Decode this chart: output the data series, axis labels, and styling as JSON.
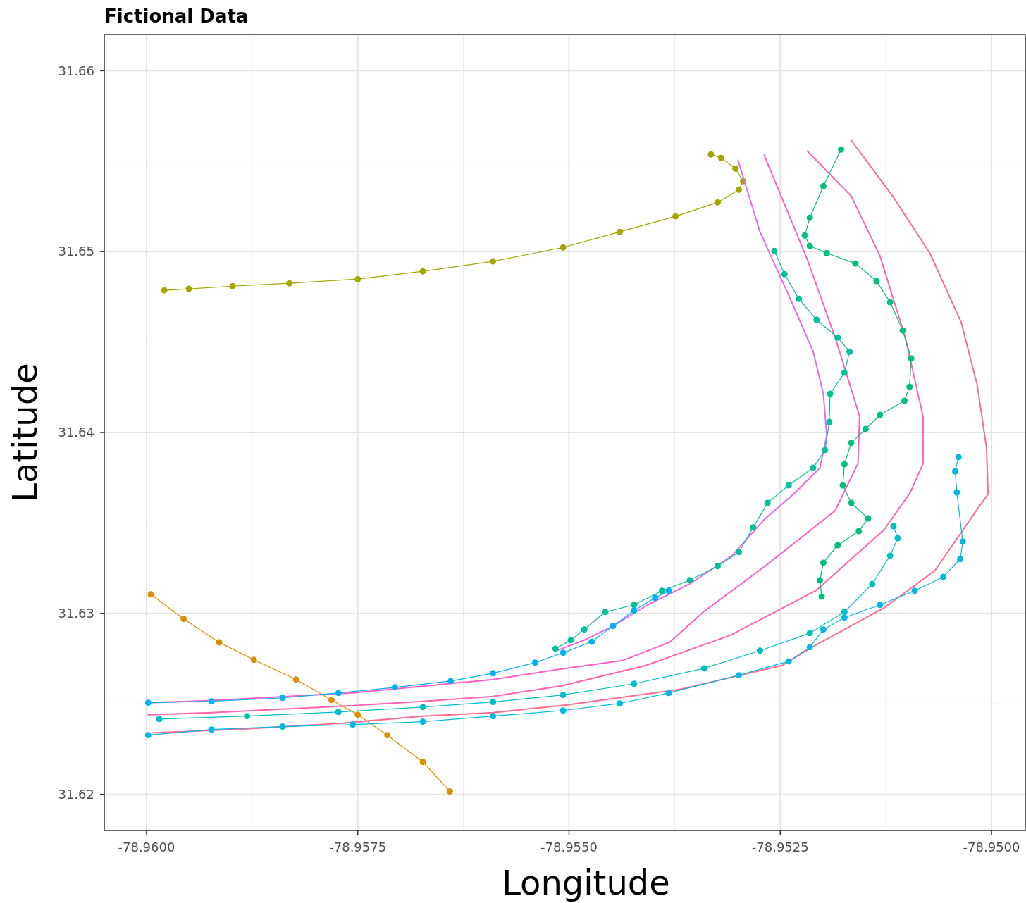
{
  "chart_data": {
    "type": "line",
    "title": "Fictional Data",
    "xlabel": "Longitude",
    "ylabel": "Latitude",
    "xlim": [
      -78.9605,
      -78.9496
    ],
    "ylim": [
      31.618,
      31.662
    ],
    "xticks": [
      {
        "value": -78.96,
        "label": "-78.9600"
      },
      {
        "value": -78.9575,
        "label": "-78.9575"
      },
      {
        "value": -78.955,
        "label": "-78.9550"
      },
      {
        "value": -78.9525,
        "label": "-78.9525"
      },
      {
        "value": -78.95,
        "label": "-78.9500"
      }
    ],
    "yticks": [
      31.62,
      31.63,
      31.64,
      31.65,
      31.66
    ],
    "grid": true,
    "series": [
      {
        "color": "#a3a500",
        "marker": "circle",
        "x": [
          -78.95979,
          -78.9595,
          -78.95898,
          -78.95831,
          -78.9575,
          -78.95673,
          -78.9559,
          -78.95507,
          -78.9544,
          -78.95374,
          -78.95324,
          -78.95299,
          -78.95294,
          -78.95303,
          -78.9532,
          -78.95332
        ],
        "values": [
          31.64786,
          31.64794,
          31.64809,
          31.64825,
          31.64848,
          31.64891,
          31.64946,
          31.65023,
          31.65109,
          31.65195,
          31.65272,
          31.65342,
          31.65389,
          31.65459,
          31.65518,
          31.65537
        ]
      },
      {
        "color": "#d89000",
        "marker": "circle",
        "x": [
          -78.95995,
          -78.95956,
          -78.95914,
          -78.95873,
          -78.95823,
          -78.95781,
          -78.9575,
          -78.95715,
          -78.95673,
          -78.95641
        ],
        "values": [
          31.63105,
          31.62969,
          31.6284,
          31.62743,
          31.62634,
          31.62521,
          31.6244,
          31.62327,
          31.62179,
          31.62016
        ]
      },
      {
        "color": "#f066ea",
        "marker": "none",
        "x": [
          -78.953,
          -78.95274,
          -78.9524,
          -78.95211,
          -78.95199,
          -78.95195,
          -78.95203,
          -78.95232,
          -78.9527,
          -78.95307,
          -78.95357,
          -78.95407,
          -78.95448,
          -78.95482,
          -78.95515
        ],
        "values": [
          31.65506,
          31.65109,
          31.64759,
          31.64447,
          31.64214,
          31.63981,
          31.63805,
          31.63669,
          31.63514,
          31.63319,
          31.63163,
          31.63047,
          31.6293,
          31.62852,
          31.62794
        ]
      },
      {
        "color": "#ff61c3",
        "marker": "none",
        "x": [
          -78.95269,
          -78.95218,
          -78.95185,
          -78.95156,
          -78.95158,
          -78.95185,
          -78.95269,
          -78.9534,
          -78.95381,
          -78.95437,
          -78.95509,
          -78.9559,
          -78.95756,
          -78.95923,
          -78.95998
        ],
        "values": [
          31.65533,
          31.64957,
          31.64525,
          31.64089,
          31.63829,
          31.63568,
          31.63257,
          31.63012,
          31.6284,
          31.62739,
          31.62693,
          31.62634,
          31.6256,
          31.62518,
          31.62506
        ]
      },
      {
        "color": "#ff64b0",
        "marker": "none",
        "x": [
          -78.95218,
          -78.95166,
          -78.95132,
          -78.95102,
          -78.95081,
          -78.95081,
          -78.95096,
          -78.95127,
          -78.95208,
          -78.95309,
          -78.95409,
          -78.95509,
          -78.9559,
          -78.95673,
          -78.95756,
          -78.95839,
          -78.95923,
          -78.95998
        ],
        "values": [
          31.65556,
          31.65307,
          31.64977,
          31.64525,
          31.64089,
          31.63829,
          31.63669,
          31.63463,
          31.63125,
          31.62879,
          31.62712,
          31.62599,
          31.62541,
          31.62514,
          31.6249,
          31.62471,
          31.62451,
          31.6244
        ]
      },
      {
        "color": "#ff6c91",
        "marker": "none",
        "x": [
          -78.95166,
          -78.95117,
          -78.95073,
          -78.95036,
          -78.95017,
          -78.95006,
          -78.95004,
          -78.95011,
          -78.95067,
          -78.95127,
          -78.95208,
          -78.95248,
          -78.95369,
          -78.95502,
          -78.9559,
          -78.95673,
          -78.95768,
          -78.95881,
          -78.95993
        ],
        "values": [
          31.65615,
          31.65307,
          31.64992,
          31.64611,
          31.64265,
          31.63918,
          31.63658,
          31.63615,
          31.63237,
          31.63031,
          31.62825,
          31.62712,
          31.6258,
          31.62494,
          31.62451,
          31.62432,
          31.62393,
          31.62362,
          31.62339
        ]
      },
      {
        "color": "#00bf7d",
        "marker": "circle",
        "x": [
          -78.95178,
          -78.95199,
          -78.95215,
          -78.95221,
          -78.95215,
          -78.95195,
          -78.95161,
          -78.95136,
          -78.9512,
          -78.95105,
          -78.95095,
          -78.95097,
          -78.95103,
          -78.95132,
          -78.95149,
          -78.95166,
          -78.95174,
          -78.95176,
          -78.95166,
          -78.95146,
          -78.95157,
          -78.95182,
          -78.95199,
          -78.95203,
          -78.95201
        ],
        "values": [
          31.65564,
          31.65362,
          31.65187,
          31.65089,
          31.65031,
          31.64992,
          31.64934,
          31.64837,
          31.6472,
          31.64564,
          31.64409,
          31.64253,
          31.64175,
          31.64097,
          31.64019,
          31.63942,
          31.63825,
          31.63708,
          31.63611,
          31.63525,
          31.63455,
          31.63377,
          31.6328,
          31.63183,
          31.63093
        ]
      },
      {
        "color": "#00c19a",
        "marker": "circle",
        "x": [
          -78.95257,
          -78.95245,
          -78.95228,
          -78.95207,
          -78.95182,
          -78.95168,
          -78.95174,
          -78.95191,
          -78.95192,
          -78.95197,
          -78.95211,
          -78.9524,
          -78.95265,
          -78.95282,
          -78.95299,
          -78.95324,
          -78.95357,
          -78.9539,
          -78.95423,
          -78.95457,
          -78.95482,
          -78.95498,
          -78.95516
        ],
        "values": [
          31.65004,
          31.64875,
          31.64739,
          31.64623,
          31.64525,
          31.64447,
          31.64331,
          31.64214,
          31.64058,
          31.63903,
          31.63805,
          31.63708,
          31.63611,
          31.63475,
          31.63339,
          31.63261,
          31.63183,
          31.63125,
          31.63047,
          31.63008,
          31.62911,
          31.62852,
          31.62805
        ]
      },
      {
        "color": "#00b0f6",
        "marker": "circle",
        "x": [
          -78.95998,
          -78.95923,
          -78.95839,
          -78.95773,
          -78.95706,
          -78.9564,
          -78.9559,
          -78.9554,
          -78.95507,
          -78.95473,
          -78.95448,
          -78.95423,
          -78.95398,
          -78.95382
        ],
        "values": [
          31.62506,
          31.62514,
          31.62533,
          31.6256,
          31.62591,
          31.62626,
          31.62669,
          31.62728,
          31.62782,
          31.62844,
          31.6293,
          31.63016,
          31.63086,
          31.63125
        ]
      },
      {
        "color": "#00bfc4",
        "marker": "circle",
        "x": [
          -78.95985,
          -78.95881,
          -78.95773,
          -78.95673,
          -78.9559,
          -78.95507,
          -78.95423,
          -78.9534,
          -78.95274,
          -78.95215,
          -78.95174,
          -78.95141,
          -78.9512,
          -78.95111,
          -78.95116
        ],
        "values": [
          31.62416,
          31.62432,
          31.62455,
          31.62482,
          31.6251,
          31.62549,
          31.62611,
          31.62696,
          31.62794,
          31.62891,
          31.63008,
          31.63163,
          31.63319,
          31.63416,
          31.63482
        ]
      },
      {
        "color": "#00b8e4",
        "marker": "circle",
        "x": [
          -78.95998,
          -78.95923,
          -78.95839,
          -78.95756,
          -78.95673,
          -78.9559,
          -78.95507,
          -78.9544,
          -78.95382,
          -78.95299,
          -78.9524,
          -78.95215,
          -78.95199,
          -78.95174,
          -78.95132,
          -78.95091,
          -78.95057,
          -78.95037,
          -78.95034,
          -78.95041,
          -78.95043,
          -78.95039
        ],
        "values": [
          31.62327,
          31.62358,
          31.62374,
          31.62385,
          31.62401,
          31.62432,
          31.62463,
          31.62502,
          31.6256,
          31.62658,
          31.62735,
          31.62813,
          31.62911,
          31.62977,
          31.63047,
          31.63125,
          31.63202,
          31.633,
          31.63397,
          31.63669,
          31.63786,
          31.63864
        ]
      }
    ]
  }
}
